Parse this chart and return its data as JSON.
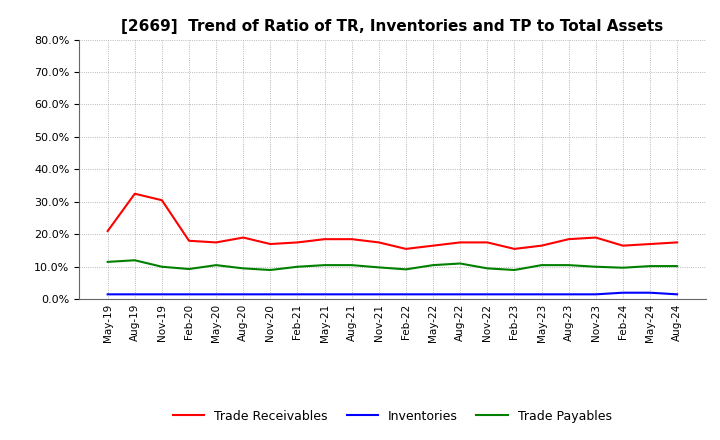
{
  "title": "[2669]  Trend of Ratio of TR, Inventories and TP to Total Assets",
  "title_fontsize": 11,
  "background_color": "#ffffff",
  "plot_bg_color": "#ffffff",
  "grid_color": "#999999",
  "ylim": [
    0.0,
    0.8
  ],
  "yticks": [
    0.0,
    0.1,
    0.2,
    0.3,
    0.4,
    0.5,
    0.6,
    0.7,
    0.8
  ],
  "xtick_labels": [
    "May-19",
    "Aug-19",
    "Nov-19",
    "Feb-20",
    "May-20",
    "Aug-20",
    "Nov-20",
    "Feb-21",
    "May-21",
    "Aug-21",
    "Nov-21",
    "Feb-22",
    "May-22",
    "Aug-22",
    "Nov-22",
    "Feb-23",
    "May-23",
    "Aug-23",
    "Nov-23",
    "Feb-24",
    "May-24",
    "Aug-24"
  ],
  "trade_receivables": [
    0.21,
    0.325,
    0.305,
    0.18,
    0.175,
    0.19,
    0.17,
    0.175,
    0.185,
    0.185,
    0.175,
    0.155,
    0.165,
    0.175,
    0.175,
    0.155,
    0.165,
    0.185,
    0.19,
    0.165,
    0.17,
    0.175
  ],
  "inventories": [
    0.015,
    0.015,
    0.015,
    0.015,
    0.015,
    0.015,
    0.015,
    0.015,
    0.015,
    0.015,
    0.015,
    0.015,
    0.015,
    0.015,
    0.015,
    0.015,
    0.015,
    0.015,
    0.015,
    0.02,
    0.02,
    0.015
  ],
  "trade_payables": [
    0.115,
    0.12,
    0.1,
    0.093,
    0.105,
    0.095,
    0.09,
    0.1,
    0.105,
    0.105,
    0.098,
    0.092,
    0.105,
    0.11,
    0.095,
    0.09,
    0.105,
    0.105,
    0.1,
    0.097,
    0.102,
    0.102
  ],
  "color_tr": "#ff0000",
  "color_inv": "#0000ff",
  "color_tp": "#008000",
  "line_width": 1.5,
  "legend_labels": [
    "Trade Receivables",
    "Inventories",
    "Trade Payables"
  ],
  "legend_fontsize": 9
}
